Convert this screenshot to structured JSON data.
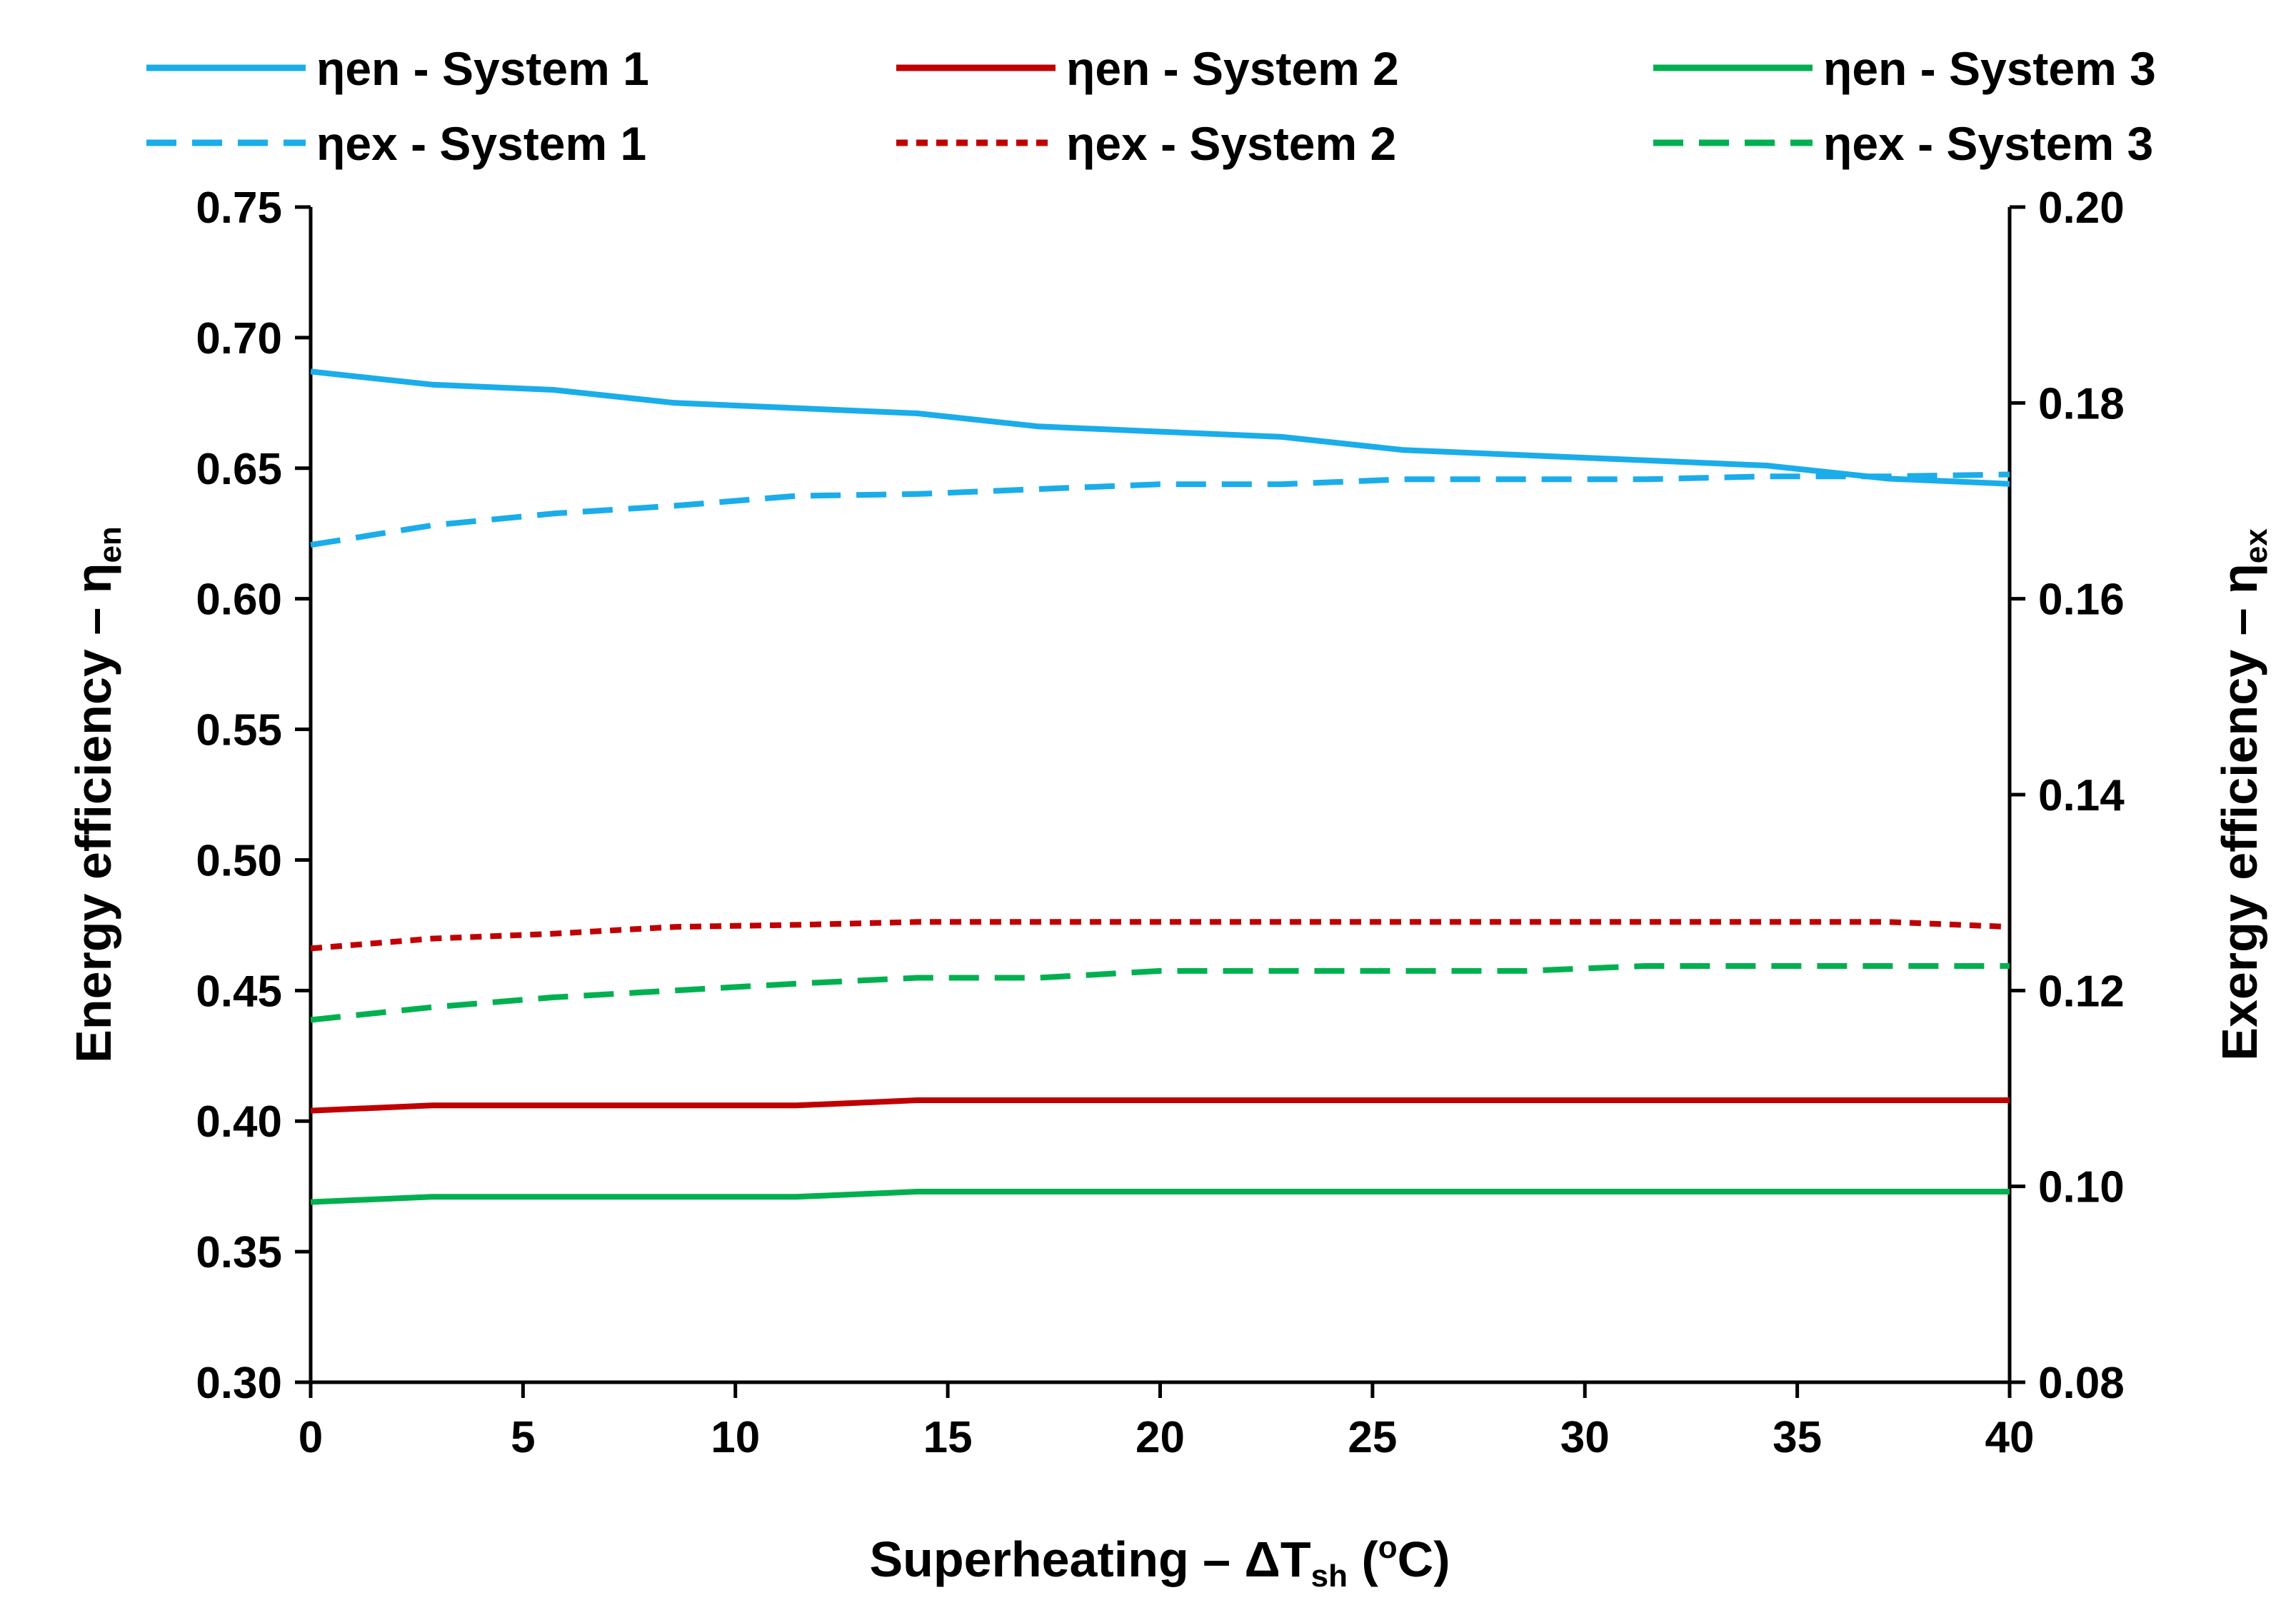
{
  "chart_data": {
    "type": "line",
    "xlabel": "Superheating – ΔT",
    "xlabel_sub": "sh",
    "xlabel_unit": " (",
    "xlabel_unit_sup": "o",
    "xlabel_unit_end": "C)",
    "ylabel_left": "Energy efficiency – η",
    "ylabel_left_sub": "en",
    "ylabel_right": "Exergy efficiency – η",
    "ylabel_right_sub": "ex",
    "xlim": [
      0,
      40
    ],
    "ylim_left": [
      0.3,
      0.75
    ],
    "ylim_right": [
      0.08,
      0.2
    ],
    "x_ticks": [
      "0",
      "5",
      "10",
      "15",
      "20",
      "25",
      "30",
      "35",
      "40"
    ],
    "x_tick_values": [
      0,
      5,
      10,
      15,
      20,
      25,
      30,
      35,
      40
    ],
    "left_ticks": [
      "0.30",
      "0.35",
      "0.40",
      "0.45",
      "0.50",
      "0.55",
      "0.60",
      "0.65",
      "0.70",
      "0.75"
    ],
    "left_tick_values": [
      0.3,
      0.35,
      0.4,
      0.45,
      0.5,
      0.55,
      0.6,
      0.65,
      0.7,
      0.75
    ],
    "right_ticks": [
      "0.08",
      "0.10",
      "0.12",
      "0.14",
      "0.16",
      "0.18",
      "0.20"
    ],
    "right_tick_values": [
      0.08,
      0.1,
      0.12,
      0.14,
      0.16,
      0.18,
      0.2
    ],
    "grid": false,
    "legend_position": "top",
    "x": [
      0,
      2.86,
      5.71,
      8.57,
      11.43,
      14.29,
      17.14,
      20,
      22.86,
      25.71,
      28.57,
      31.43,
      34.29,
      37.14,
      40
    ],
    "series": [
      {
        "name": "ηen - System 1",
        "axis": "left",
        "style": "solid",
        "color": "#1AADEA",
        "values": [
          0.687,
          0.682,
          0.68,
          0.675,
          0.673,
          0.671,
          0.666,
          0.664,
          0.662,
          0.657,
          0.655,
          0.653,
          0.651,
          0.646,
          0.644
        ]
      },
      {
        "name": "ηen - System 2",
        "axis": "left",
        "style": "solid",
        "color": "#C00000",
        "values": [
          0.404,
          0.406,
          0.406,
          0.406,
          0.406,
          0.408,
          0.408,
          0.408,
          0.408,
          0.408,
          0.408,
          0.408,
          0.408,
          0.408,
          0.408
        ]
      },
      {
        "name": "ηen - System 3",
        "axis": "left",
        "style": "solid",
        "color": "#00B050",
        "values": [
          0.369,
          0.371,
          0.371,
          0.371,
          0.371,
          0.373,
          0.373,
          0.373,
          0.373,
          0.373,
          0.373,
          0.373,
          0.373,
          0.373,
          0.373
        ]
      },
      {
        "name": "ηex - System 1",
        "axis": "right",
        "style": "dashed",
        "color": "#1AADEA",
        "values": [
          0.1655,
          0.1675,
          0.1687,
          0.1695,
          0.1705,
          0.1707,
          0.1712,
          0.1717,
          0.1717,
          0.1722,
          0.1722,
          0.1722,
          0.1725,
          0.1725,
          0.1727
        ]
      },
      {
        "name": "ηex - System 2",
        "axis": "right",
        "style": "dotted",
        "color": "#C00000",
        "values": [
          0.1243,
          0.1253,
          0.1258,
          0.1265,
          0.1267,
          0.127,
          0.127,
          0.127,
          0.127,
          0.127,
          0.127,
          0.127,
          0.127,
          0.127,
          0.1265
        ]
      },
      {
        "name": "ηex - System 3",
        "axis": "right",
        "style": "dashed",
        "color": "#00B050",
        "values": [
          0.117,
          0.1183,
          0.1193,
          0.12,
          0.1207,
          0.1213,
          0.1213,
          0.122,
          0.122,
          0.122,
          0.122,
          0.1225,
          0.1225,
          0.1225,
          0.1225
        ]
      }
    ]
  }
}
